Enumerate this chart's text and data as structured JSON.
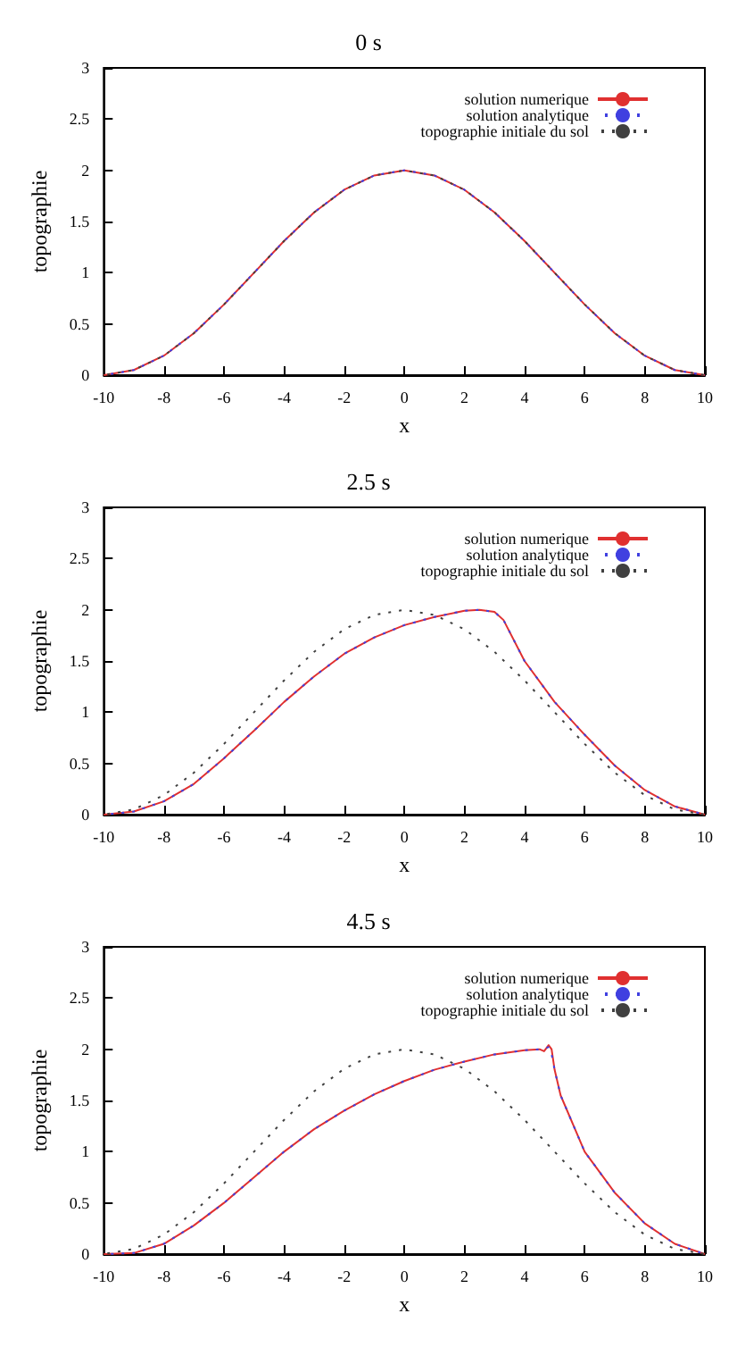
{
  "chart_data": [
    {
      "type": "line",
      "title": "0 s",
      "xlabel": "x",
      "ylabel": "topographie",
      "xlim": [
        -10,
        10
      ],
      "xticks": [
        -10,
        -8,
        -6,
        -4,
        -2,
        0,
        2,
        4,
        6,
        8,
        10
      ],
      "ylim": [
        0,
        3
      ],
      "yticks": [
        0,
        0.5,
        1,
        1.5,
        2,
        2.5,
        3
      ],
      "legend": "top right",
      "series": [
        {
          "name": "solution numerique",
          "color": "#e03030",
          "line_style": "solid",
          "x": [
            -10,
            -9,
            -8,
            -7,
            -6,
            -5,
            -4,
            -3,
            -2,
            -1,
            0,
            1,
            2,
            3,
            4,
            5,
            6,
            7,
            8,
            9,
            10
          ],
          "values": [
            0,
            0.05,
            0.19,
            0.41,
            0.69,
            1.0,
            1.31,
            1.59,
            1.81,
            1.95,
            2.0,
            1.95,
            1.81,
            1.59,
            1.31,
            1.0,
            0.69,
            0.41,
            0.19,
            0.05,
            0
          ]
        },
        {
          "name": "solution analytique",
          "color": "#4040e0",
          "line_style": "dotted",
          "x": [
            -10,
            -9,
            -8,
            -7,
            -6,
            -5,
            -4,
            -3,
            -2,
            -1,
            0,
            1,
            2,
            3,
            4,
            5,
            6,
            7,
            8,
            9,
            10
          ],
          "values": [
            0,
            0.05,
            0.19,
            0.41,
            0.69,
            1.0,
            1.31,
            1.59,
            1.81,
            1.95,
            2.0,
            1.95,
            1.81,
            1.59,
            1.31,
            1.0,
            0.69,
            0.41,
            0.19,
            0.05,
            0
          ]
        },
        {
          "name": "topographie initiale du sol",
          "color": "#404040",
          "line_style": "dotted",
          "x": [
            -10,
            -9,
            -8,
            -7,
            -6,
            -5,
            -4,
            -3,
            -2,
            -1,
            0,
            1,
            2,
            3,
            4,
            5,
            6,
            7,
            8,
            9,
            10
          ],
          "values": [
            0,
            0.05,
            0.19,
            0.41,
            0.69,
            1.0,
            1.31,
            1.59,
            1.81,
            1.95,
            2.0,
            1.95,
            1.81,
            1.59,
            1.31,
            1.0,
            0.69,
            0.41,
            0.19,
            0.05,
            0
          ]
        }
      ]
    },
    {
      "type": "line",
      "title": "2.5 s",
      "xlabel": "x",
      "ylabel": "topographie",
      "xlim": [
        -10,
        10
      ],
      "xticks": [
        -10,
        -8,
        -6,
        -4,
        -2,
        0,
        2,
        4,
        6,
        8,
        10
      ],
      "ylim": [
        0,
        3
      ],
      "yticks": [
        0,
        0.5,
        1,
        1.5,
        2,
        2.5,
        3
      ],
      "legend": "top right",
      "series": [
        {
          "name": "solution numerique",
          "color": "#e03030",
          "line_style": "solid",
          "x": [
            -10,
            -9,
            -8,
            -7,
            -6,
            -5,
            -4,
            -3,
            -2,
            -1,
            0,
            1,
            2,
            2.5,
            3,
            3.3,
            4,
            5,
            6,
            7,
            8,
            9,
            10
          ],
          "values": [
            0,
            0.03,
            0.13,
            0.3,
            0.55,
            0.82,
            1.1,
            1.35,
            1.57,
            1.73,
            1.85,
            1.93,
            1.99,
            2.0,
            1.98,
            1.9,
            1.5,
            1.1,
            0.78,
            0.48,
            0.24,
            0.08,
            0
          ]
        },
        {
          "name": "solution analytique",
          "color": "#4040e0",
          "line_style": "dotted",
          "x": [
            -10,
            -9,
            -8,
            -7,
            -6,
            -5,
            -4,
            -3,
            -2,
            -1,
            0,
            1,
            2,
            2.5,
            3,
            3.3,
            4,
            5,
            6,
            7,
            8,
            9,
            10
          ],
          "values": [
            0,
            0.03,
            0.13,
            0.3,
            0.55,
            0.82,
            1.1,
            1.35,
            1.57,
            1.73,
            1.85,
            1.93,
            1.99,
            2.0,
            1.98,
            1.9,
            1.5,
            1.1,
            0.78,
            0.48,
            0.24,
            0.08,
            0
          ]
        },
        {
          "name": "topographie initiale du sol",
          "color": "#404040",
          "line_style": "dotted",
          "x": [
            -10,
            -9,
            -8,
            -7,
            -6,
            -5,
            -4,
            -3,
            -2,
            -1,
            0,
            1,
            2,
            3,
            4,
            5,
            6,
            7,
            8,
            9,
            10
          ],
          "values": [
            0,
            0.05,
            0.19,
            0.41,
            0.69,
            1.0,
            1.31,
            1.59,
            1.81,
            1.95,
            2.0,
            1.95,
            1.81,
            1.59,
            1.31,
            1.0,
            0.69,
            0.41,
            0.19,
            0.05,
            0
          ]
        }
      ]
    },
    {
      "type": "line",
      "title": "4.5 s",
      "xlabel": "x",
      "ylabel": "topographie",
      "xlim": [
        -10,
        10
      ],
      "xticks": [
        -10,
        -8,
        -6,
        -4,
        -2,
        0,
        2,
        4,
        6,
        8,
        10
      ],
      "ylim": [
        0,
        3
      ],
      "yticks": [
        0,
        0.5,
        1,
        1.5,
        2,
        2.5,
        3
      ],
      "legend": "top right",
      "series": [
        {
          "name": "solution numerique",
          "color": "#e03030",
          "line_style": "solid",
          "x": [
            -10,
            -9,
            -8,
            -7,
            -6,
            -5,
            -4,
            -3,
            -2,
            -1,
            0,
            1,
            2,
            3,
            4,
            4.5,
            4.65,
            4.8,
            4.9,
            5.0,
            5.2,
            6,
            7,
            8,
            9,
            10
          ],
          "values": [
            0,
            0.01,
            0.1,
            0.28,
            0.5,
            0.75,
            1.0,
            1.22,
            1.4,
            1.56,
            1.69,
            1.8,
            1.88,
            1.95,
            1.99,
            2.0,
            1.98,
            2.04,
            2.0,
            1.8,
            1.55,
            1.0,
            0.6,
            0.3,
            0.1,
            0
          ]
        },
        {
          "name": "solution analytique",
          "color": "#4040e0",
          "line_style": "dotted",
          "x": [
            -10,
            -9,
            -8,
            -7,
            -6,
            -5,
            -4,
            -3,
            -2,
            -1,
            0,
            1,
            2,
            3,
            4,
            4.5,
            4.8,
            4.9,
            5.0,
            5.2,
            6,
            7,
            8,
            9,
            10
          ],
          "values": [
            0,
            0.01,
            0.1,
            0.28,
            0.5,
            0.75,
            1.0,
            1.22,
            1.4,
            1.56,
            1.69,
            1.8,
            1.88,
            1.95,
            1.99,
            2.0,
            2.02,
            1.95,
            1.8,
            1.55,
            1.0,
            0.6,
            0.3,
            0.1,
            0
          ]
        },
        {
          "name": "topographie initiale du sol",
          "color": "#404040",
          "line_style": "dotted",
          "x": [
            -10,
            -9,
            -8,
            -7,
            -6,
            -5,
            -4,
            -3,
            -2,
            -1,
            0,
            1,
            2,
            3,
            4,
            5,
            6,
            7,
            8,
            9,
            10
          ],
          "values": [
            0,
            0.05,
            0.19,
            0.41,
            0.69,
            1.0,
            1.31,
            1.59,
            1.81,
            1.95,
            2.0,
            1.95,
            1.81,
            1.59,
            1.31,
            1.0,
            0.69,
            0.41,
            0.19,
            0.05,
            0
          ]
        }
      ]
    }
  ]
}
